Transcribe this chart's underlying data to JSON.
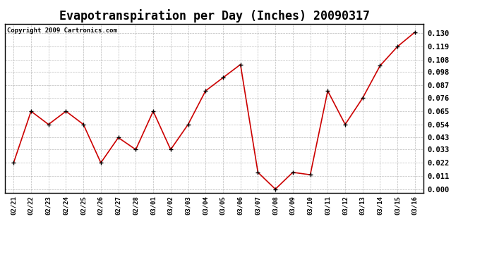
{
  "title": "Evapotranspiration per Day (Inches) 20090317",
  "copyright": "Copyright 2009 Cartronics.com",
  "x_labels": [
    "02/21",
    "02/22",
    "02/23",
    "02/24",
    "02/25",
    "02/26",
    "02/27",
    "02/28",
    "03/01",
    "03/02",
    "03/03",
    "03/04",
    "03/05",
    "03/06",
    "03/07",
    "03/08",
    "03/09",
    "03/10",
    "03/11",
    "03/12",
    "03/13",
    "03/14",
    "03/15",
    "03/16"
  ],
  "y_values": [
    0.022,
    0.065,
    0.054,
    0.065,
    0.054,
    0.022,
    0.043,
    0.033,
    0.065,
    0.033,
    0.054,
    0.082,
    0.093,
    0.104,
    0.014,
    0.0,
    0.014,
    0.012,
    0.082,
    0.054,
    0.076,
    0.103,
    0.119,
    0.131
  ],
  "y_ticks": [
    0.0,
    0.011,
    0.022,
    0.033,
    0.043,
    0.054,
    0.065,
    0.076,
    0.087,
    0.098,
    0.108,
    0.119,
    0.13
  ],
  "line_color": "#cc0000",
  "marker": "+",
  "marker_color": "#000000",
  "bg_color": "#ffffff",
  "grid_color": "#aaaaaa",
  "ylim": [
    -0.003,
    0.138
  ],
  "title_fontsize": 12,
  "copyright_fontsize": 6.5,
  "tick_fontsize": 7.5,
  "xtick_fontsize": 6.5
}
